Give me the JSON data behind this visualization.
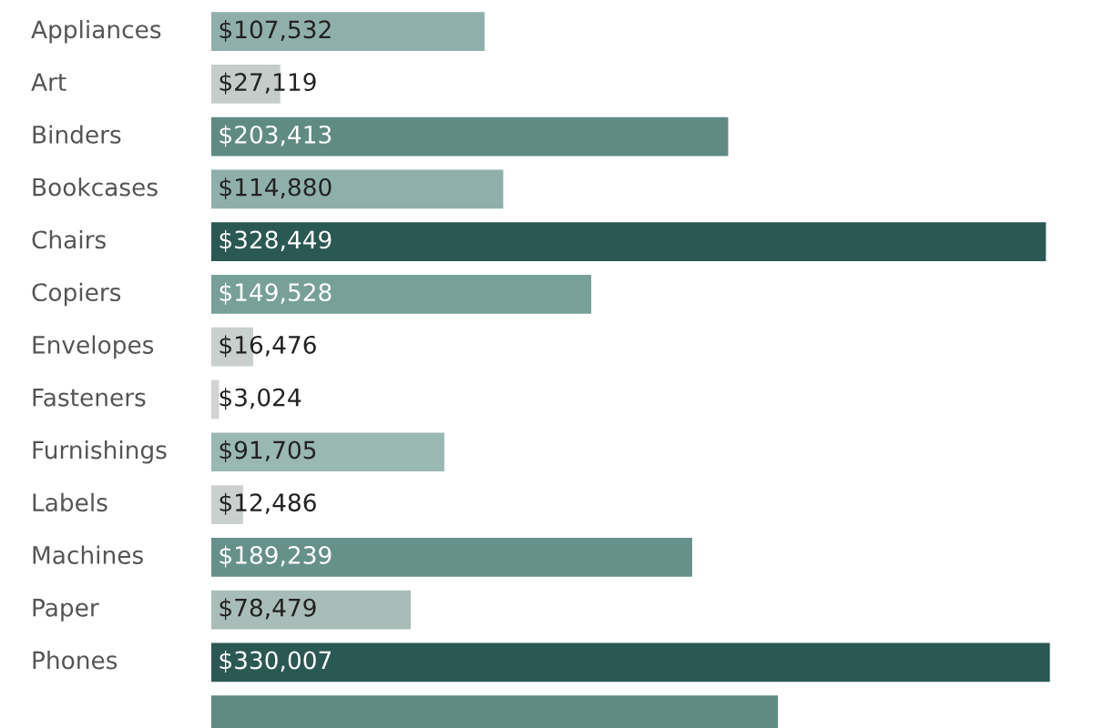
{
  "chart_data": {
    "type": "bar",
    "orientation": "horizontal",
    "categories": [
      "Appliances",
      "Art",
      "Binders",
      "Bookcases",
      "Chairs",
      "Copiers",
      "Envelopes",
      "Fasteners",
      "Furnishings",
      "Labels",
      "Machines",
      "Paper",
      "Phones",
      null
    ],
    "values": [
      107532,
      27119,
      203413,
      114880,
      328449,
      149528,
      16476,
      3024,
      91705,
      12486,
      189239,
      78479,
      330007,
      223000
    ],
    "value_labels": [
      "$107,532",
      "$27,119",
      "$203,413",
      "$114,880",
      "$328,449",
      "$149,528",
      "$16,476",
      "$3,024",
      "$91,705",
      "$12,486",
      "$189,239",
      "$78,479",
      "$330,007",
      null
    ],
    "colors": [
      "#8fb0aa",
      "#c5ccc9",
      "#5f8b83",
      "#8fb0aa",
      "#2a5853",
      "#76a098",
      "#c9cfcc",
      "#d0d3d2",
      "#9ab8b2",
      "#cbd0ce",
      "#65918a",
      "#a8bdb8",
      "#2a5853",
      "#5f8b83"
    ],
    "legend": false
  }
}
